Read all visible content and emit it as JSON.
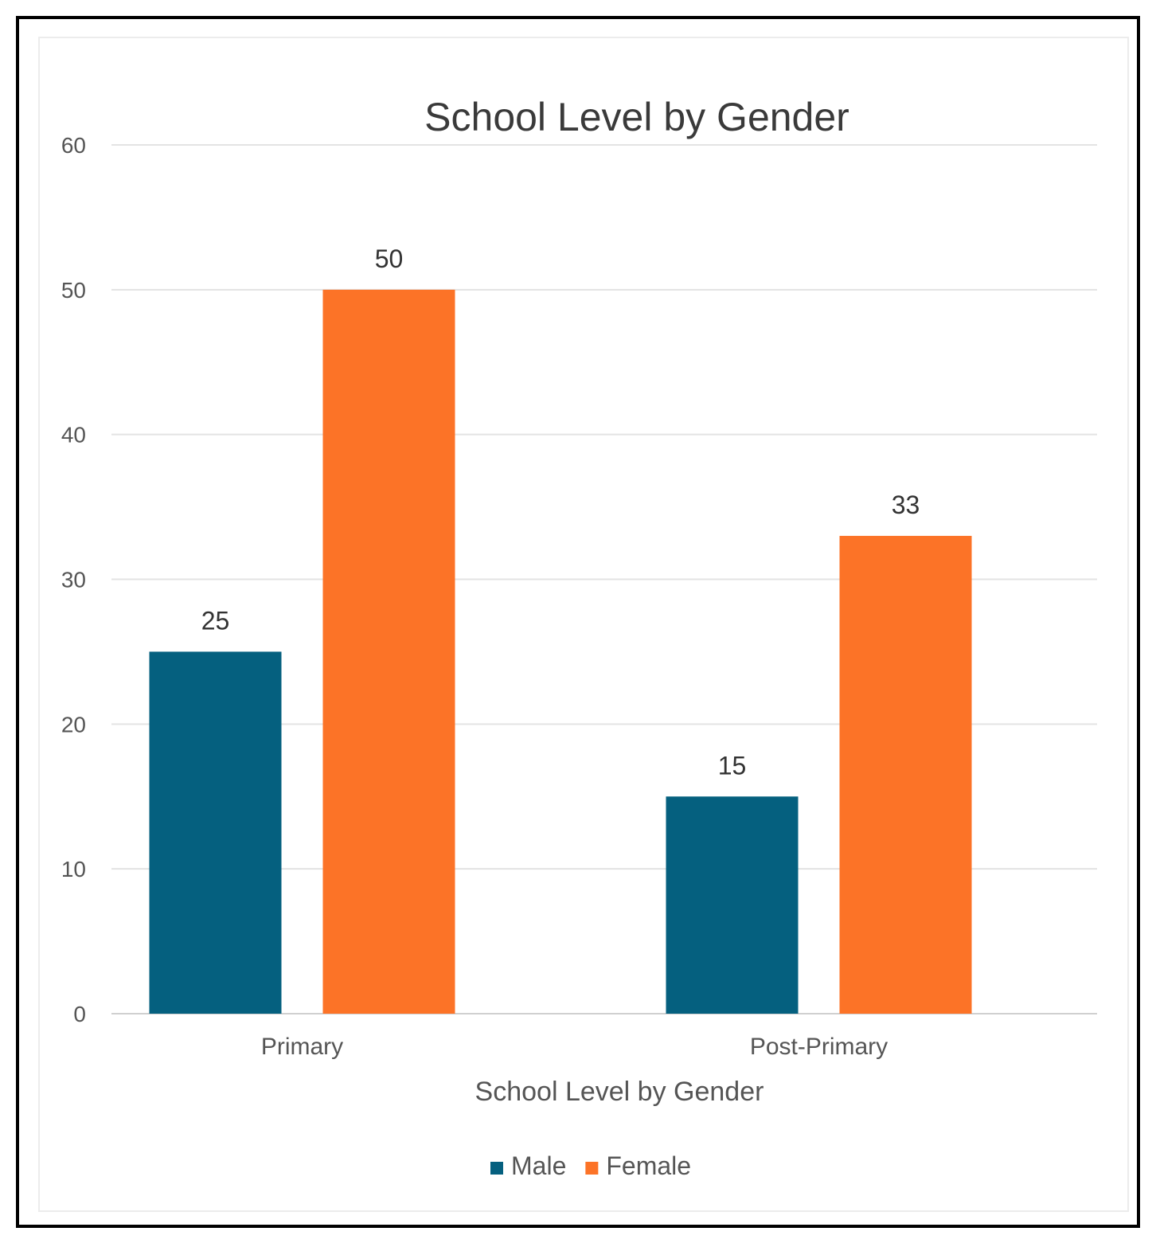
{
  "chart_data": {
    "type": "bar",
    "title": "School Level by Gender",
    "xlabel": "School Level by Gender",
    "ylabel": "",
    "categories": [
      "Primary",
      "Post-Primary"
    ],
    "series": [
      {
        "name": "Male",
        "values": [
          25,
          15
        ],
        "color": "#05607f"
      },
      {
        "name": "Female",
        "values": [
          50,
          33
        ],
        "color": "#fc7327"
      }
    ],
    "ylim": [
      0,
      60
    ],
    "yticks": [
      0,
      10,
      20,
      30,
      40,
      50,
      60
    ],
    "grid": true,
    "legend_position": "bottom"
  }
}
